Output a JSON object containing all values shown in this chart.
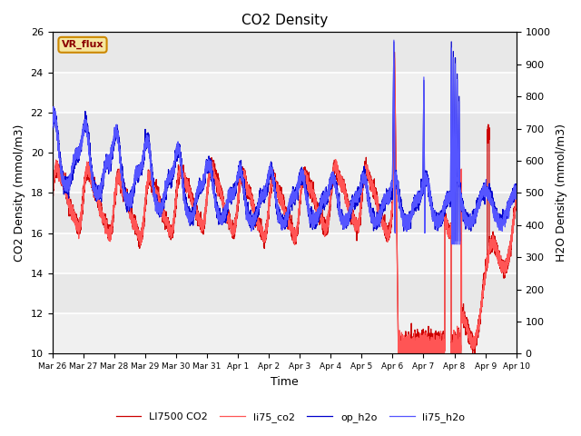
{
  "title": "CO2 Density",
  "xlabel": "Time",
  "ylabel_left": "CO2 Density (mmol/m3)",
  "ylabel_right": "H2O Density (mmol/m3)",
  "ylim_left": [
    10,
    26
  ],
  "ylim_right": [
    0,
    1000
  ],
  "xtick_labels": [
    "Mar 26",
    "Mar 27",
    "Mar 28",
    "Mar 29",
    "Mar 30",
    "Mar 31",
    "Apr 1",
    "Apr 2",
    "Apr 3",
    "Apr 4",
    "Apr 5",
    "Apr 6",
    "Apr 7",
    "Apr 8",
    "Apr 9",
    "Apr 10"
  ],
  "series_labels": [
    "LI7500 CO2",
    "li75_co2",
    "op_h2o",
    "li75_h2o"
  ],
  "colors_co2": [
    "#cc0000",
    "#ff5555"
  ],
  "colors_h2o": [
    "#0000cc",
    "#5555ff"
  ],
  "legend_label": "VR_flux",
  "background_color": "#e8e8e8",
  "band_color": "#f0f0f0",
  "title_fontsize": 11,
  "axis_fontsize": 9,
  "tick_fontsize": 8
}
